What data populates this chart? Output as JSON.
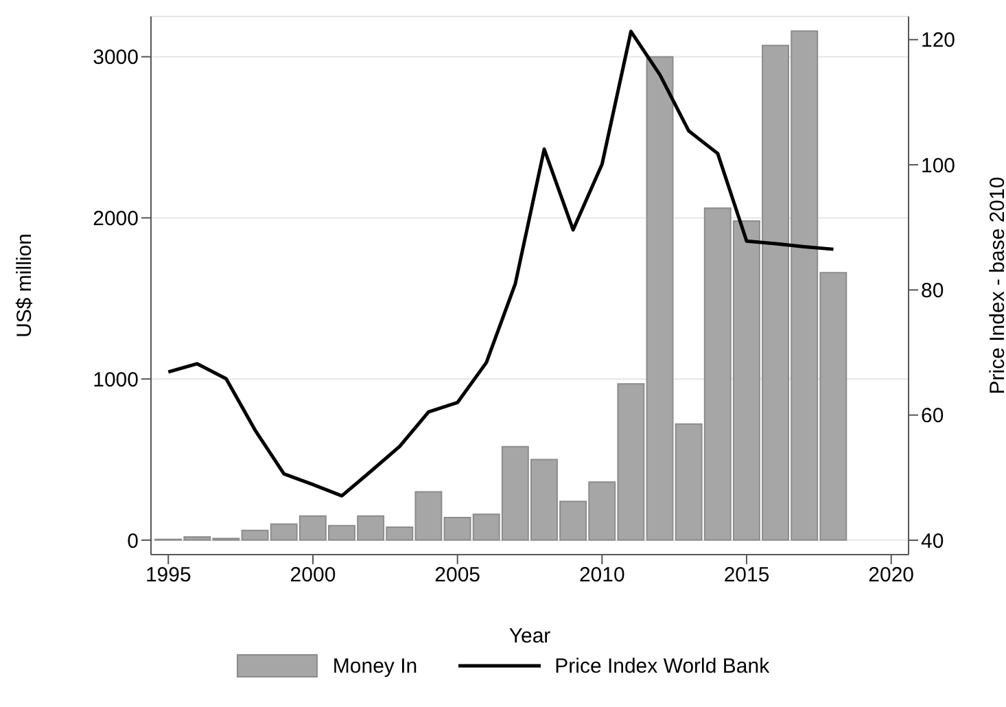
{
  "chart_data": {
    "type": "bar",
    "xlabel": "Year",
    "ylabel": "US$ million",
    "y2label": "Price Index - base 2010",
    "x": [
      1995,
      1996,
      1997,
      1998,
      1999,
      2000,
      2001,
      2002,
      2003,
      2004,
      2005,
      2006,
      2007,
      2008,
      2009,
      2010,
      2011,
      2012,
      2013,
      2014,
      2015,
      2016,
      2017,
      2018
    ],
    "series": [
      {
        "name": "Money In",
        "color": "#a6a6a6",
        "values": [
          5,
          20,
          10,
          60,
          100,
          150,
          90,
          150,
          80,
          300,
          140,
          160,
          580,
          500,
          240,
          360,
          970,
          3000,
          720,
          2060,
          1980,
          3070,
          3160,
          1660
        ]
      },
      {
        "name": "Price Index World Bank",
        "type": "line",
        "axis": "y2",
        "color": "#000000",
        "values": [
          66.9,
          68.2,
          65.8,
          57.6,
          50.6,
          48.9,
          47.1,
          51.0,
          55.0,
          60.5,
          62.0,
          68.4,
          81.0,
          102.5,
          89.6,
          100.1,
          121.3,
          114.4,
          105.4,
          101.8,
          87.8,
          87.4,
          86.9,
          86.5
        ]
      }
    ],
    "xlim": [
      1994.4,
      2020.6
    ],
    "xticks": [
      1995,
      2000,
      2005,
      2010,
      2015,
      2020
    ],
    "ylim": [
      -90,
      3250
    ],
    "yticks": [
      0,
      1000,
      2000,
      3000
    ],
    "y2lim": [
      37.7,
      123.7
    ],
    "y2ticks": [
      40,
      60,
      80,
      100,
      120
    ],
    "grid": "y",
    "legend": "bottom",
    "marker": "none",
    "line_style": "solid"
  }
}
